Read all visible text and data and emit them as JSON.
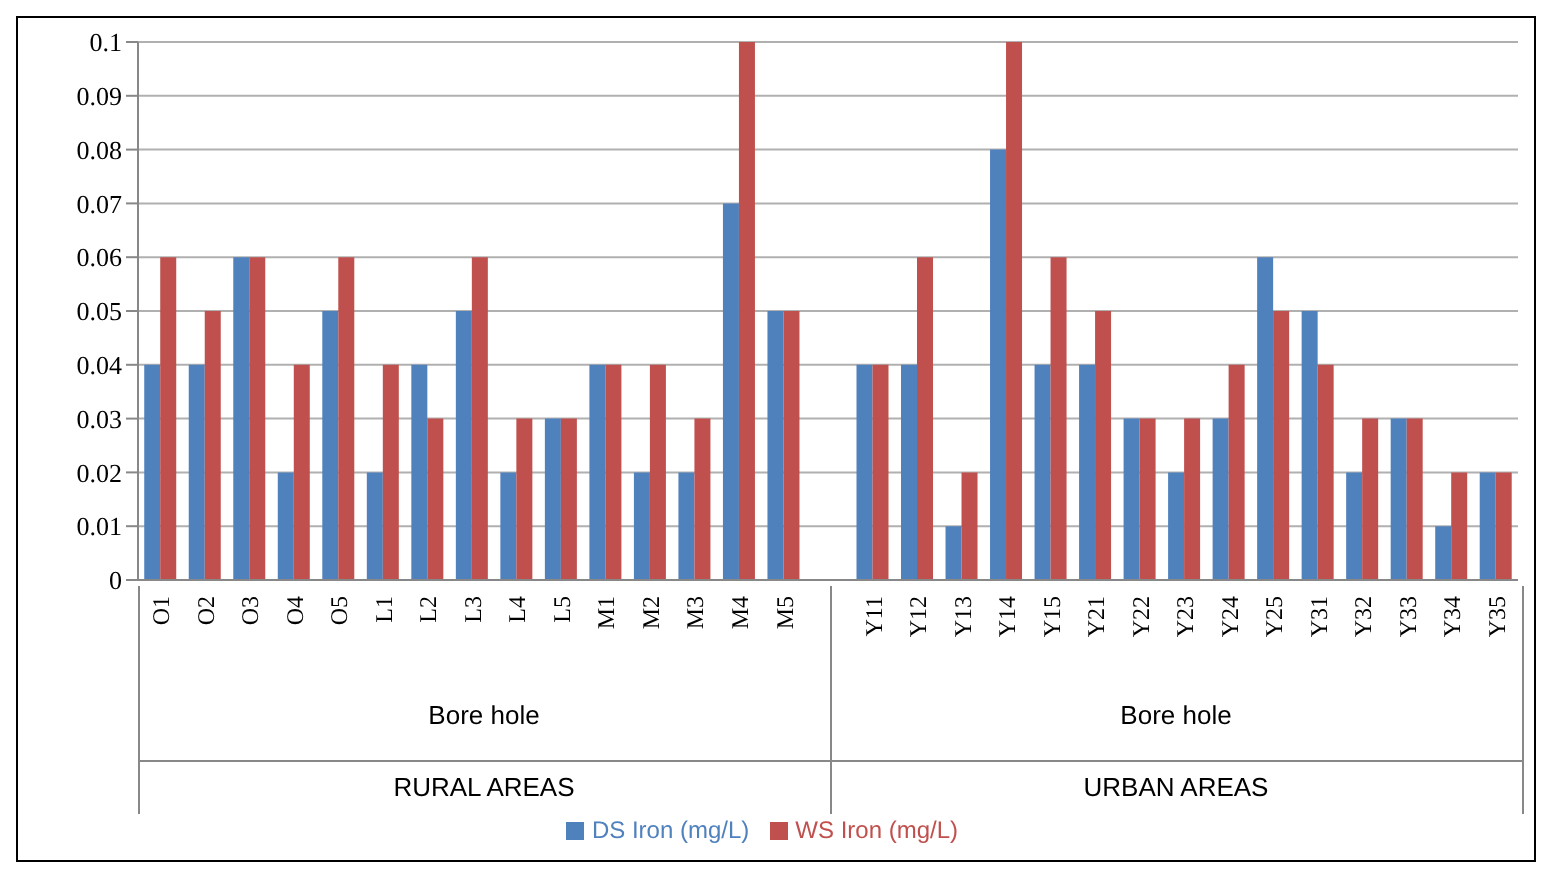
{
  "chart_data": {
    "type": "bar",
    "categories": [
      "O1",
      "O2",
      "O3",
      "O4",
      "O5",
      "L1",
      "L2",
      "L3",
      "L4",
      "L5",
      "M1",
      "M2",
      "M3",
      "M4",
      "M5",
      null,
      "Y11",
      "Y12",
      "Y13",
      "Y14",
      "Y15",
      "Y21",
      "Y22",
      "Y23",
      "Y24",
      "Y25",
      "Y31",
      "Y32",
      "Y33",
      "Y34",
      "Y35"
    ],
    "series": [
      {
        "name": "DS Iron (mg/L)",
        "color": "#4f81bd",
        "values": [
          0.04,
          0.04,
          0.06,
          0.02,
          0.05,
          0.02,
          0.04,
          0.05,
          0.02,
          0.03,
          0.04,
          0.02,
          0.02,
          0.07,
          0.05,
          null,
          0.04,
          0.04,
          0.01,
          0.08,
          0.04,
          0.04,
          0.03,
          0.02,
          0.03,
          0.06,
          0.05,
          0.02,
          0.03,
          0.01,
          0.02
        ]
      },
      {
        "name": "WS Iron (mg/L)",
        "color": "#c0504d",
        "values": [
          0.06,
          0.05,
          0.06,
          0.04,
          0.06,
          0.04,
          0.03,
          0.06,
          0.03,
          0.03,
          0.04,
          0.04,
          0.03,
          0.1,
          0.05,
          null,
          0.04,
          0.06,
          0.02,
          0.1,
          0.06,
          0.05,
          0.03,
          0.03,
          0.04,
          0.05,
          0.04,
          0.03,
          0.03,
          0.02,
          0.02
        ]
      }
    ],
    "ylim": [
      0,
      0.1
    ],
    "yticks": [
      0,
      0.01,
      0.02,
      0.03,
      0.04,
      0.05,
      0.06,
      0.07,
      0.08,
      0.09,
      0.1
    ],
    "grid": "y",
    "legend": "bottom",
    "annotations": [
      "Bore hole",
      "Bore hole",
      "RURAL AREAS",
      "URBAN AREAS"
    ]
  }
}
